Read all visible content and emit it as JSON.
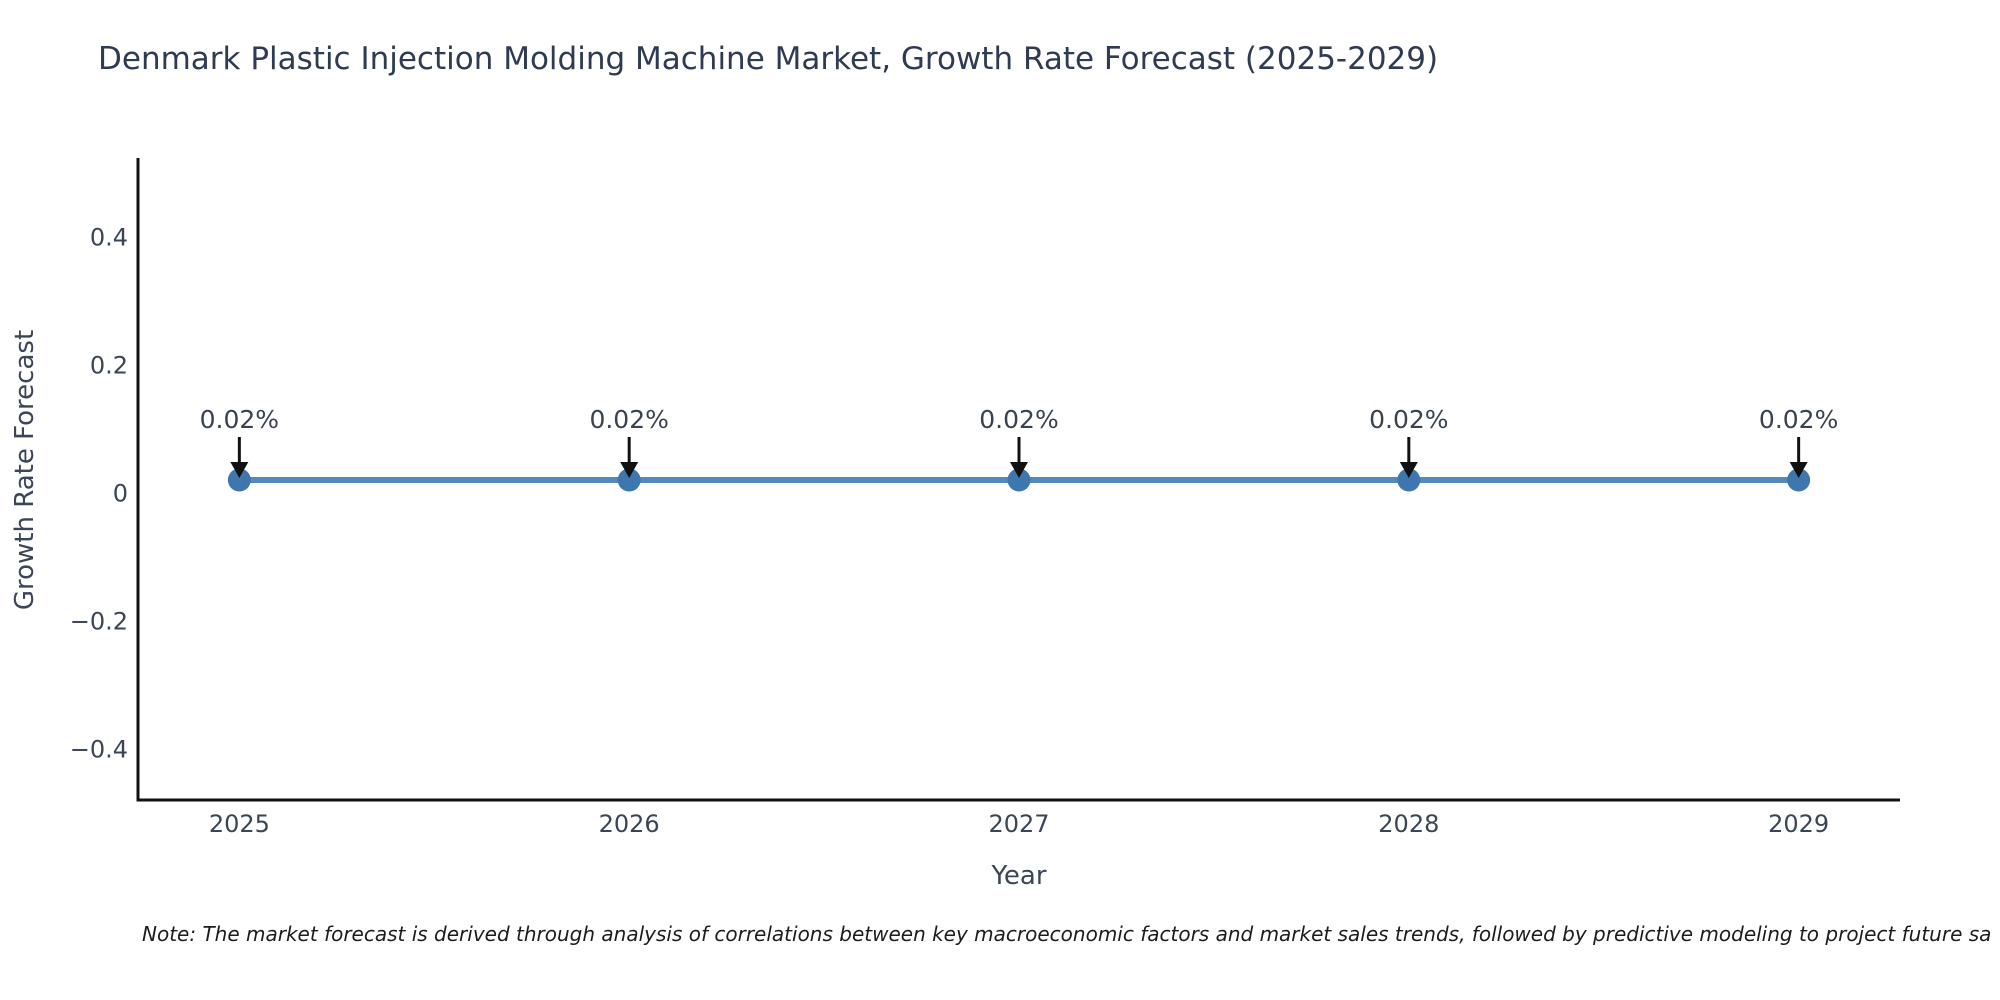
{
  "chart_data": {
    "type": "line",
    "title": "Denmark Plastic Injection Molding Machine Market, Growth Rate Forecast (2025-2029)",
    "xlabel": "Year",
    "ylabel": "Growth Rate Forecast",
    "x": [
      2025,
      2026,
      2027,
      2028,
      2029
    ],
    "series": [
      {
        "name": "Growth Rate Forecast",
        "values": [
          0.02,
          0.02,
          0.02,
          0.02,
          0.02
        ]
      }
    ],
    "point_labels": [
      "0.02%",
      "0.02%",
      "0.02%",
      "0.02%",
      "0.02%"
    ],
    "yticks": [
      0.4,
      0.2,
      0,
      -0.2,
      -0.4
    ],
    "ylim": [
      -0.48,
      0.52
    ],
    "xlim": [
      2024.74,
      2029.26
    ],
    "grid": false,
    "legend": false,
    "colors": {
      "line": "#5588bb",
      "marker": "#3d77ae",
      "spine": "#111111",
      "tick_text": "#3a4556",
      "title_text": "#2f3b52",
      "annotation_text": "#39424f",
      "arrow": "#111111",
      "note_text": "#1c1c1c"
    },
    "note": "Note: The market forecast is derived through analysis of correlations between key macroeconomic factors and market sales trends, followed by predictive modeling to project future sa"
  }
}
